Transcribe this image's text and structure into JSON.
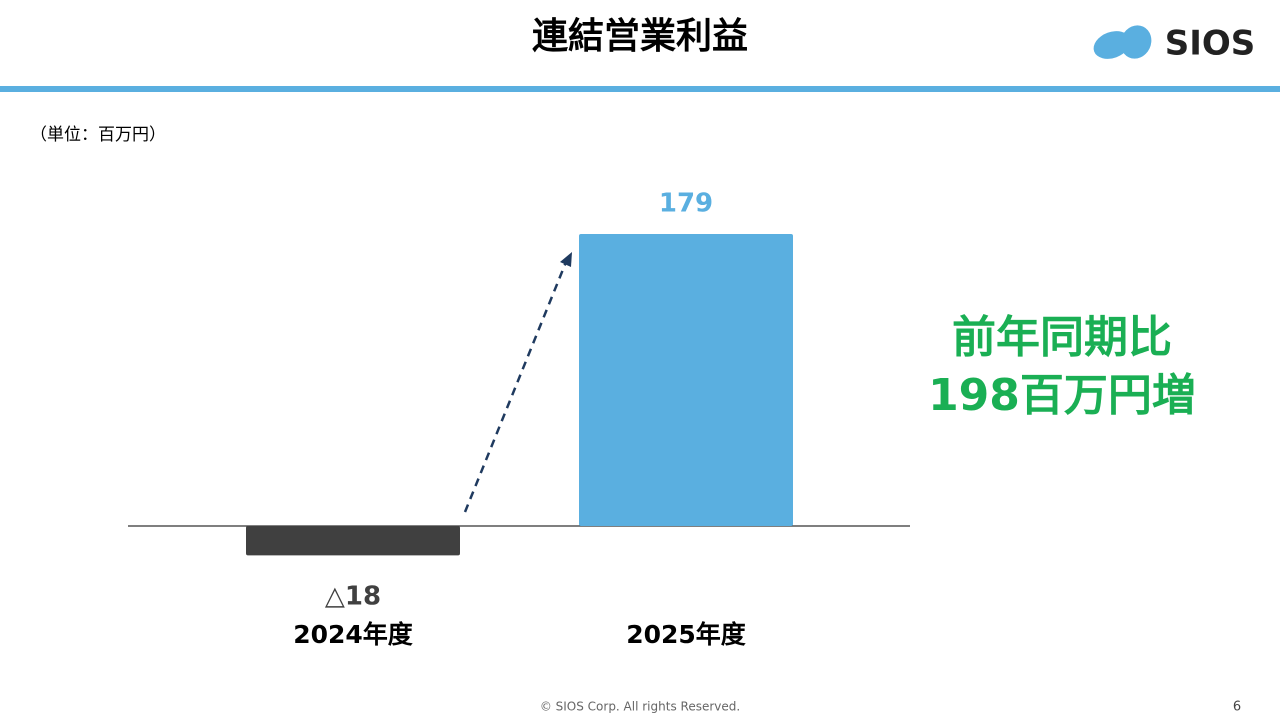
{
  "header": {
    "title": "連結営業利益",
    "logo": "SIOS"
  },
  "chart_data": {
    "type": "bar",
    "unit_note": "（単位：百万円）",
    "categories": [
      "2024年度",
      "2025年度"
    ],
    "values": [
      -18,
      179
    ],
    "value_labels": [
      "△18",
      "179"
    ],
    "colors": [
      "#404040",
      "#5aafe0"
    ],
    "annotation": [
      "前年同期比",
      "198百万円増"
    ]
  },
  "footer": {
    "copyright": "© SIOS Corp. All rights Reserved.",
    "page": "6"
  }
}
